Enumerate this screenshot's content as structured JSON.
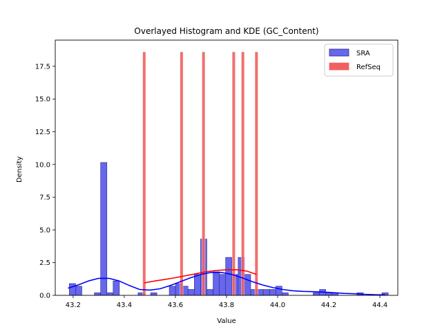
{
  "chart_data": {
    "type": "histogram",
    "title": "Overlayed Histogram and KDE (GC_Content)",
    "xlabel": "Value",
    "ylabel": "Density",
    "xlim": [
      43.13,
      44.47
    ],
    "ylim": [
      0,
      19.5
    ],
    "xticks": [
      43.2,
      43.4,
      43.6,
      43.8,
      44.0,
      44.2,
      44.4
    ],
    "xtick_labels": [
      "43.2",
      "43.4",
      "43.6",
      "43.8",
      "44.0",
      "44.2",
      "44.4"
    ],
    "yticks": [
      0,
      2.5,
      5,
      7.5,
      10,
      12.5,
      15,
      17.5
    ],
    "ytick_labels": [
      "0.0",
      "2.5",
      "5.0",
      "7.5",
      "10.0",
      "12.5",
      "15.0",
      "17.5"
    ],
    "grid": false,
    "legend_position": "top-right",
    "colors": {
      "sra_fill": "#6666ee",
      "sra_edge": "#2a2a7a",
      "sra_line": "#0000ff",
      "refseq_fill": "#f06060",
      "refseq_line": "#ff0000"
    },
    "series": [
      {
        "name": "SRA",
        "kind": "histogram",
        "bin_width": 0.0245,
        "bins": [
          {
            "x0": 43.185,
            "density": 0.9
          },
          {
            "x0": 43.2095,
            "density": 0.7
          },
          {
            "x0": 43.283,
            "density": 0.2
          },
          {
            "x0": 43.3075,
            "density": 10.15
          },
          {
            "x0": 43.332,
            "density": 0.2
          },
          {
            "x0": 43.3565,
            "density": 1.1
          },
          {
            "x0": 43.454,
            "density": 0.2
          },
          {
            "x0": 43.503,
            "density": 0.2
          },
          {
            "x0": 43.576,
            "density": 0.7
          },
          {
            "x0": 43.6005,
            "density": 0.9
          },
          {
            "x0": 43.625,
            "density": 0.7
          },
          {
            "x0": 43.6495,
            "density": 0.45
          },
          {
            "x0": 43.674,
            "density": 1.6
          },
          {
            "x0": 43.6985,
            "density": 4.3
          },
          {
            "x0": 43.723,
            "density": 0.45
          },
          {
            "x0": 43.7475,
            "density": 1.8
          },
          {
            "x0": 43.772,
            "density": 1.6
          },
          {
            "x0": 43.7965,
            "density": 2.9
          },
          {
            "x0": 43.821,
            "density": 1.6
          },
          {
            "x0": 43.8455,
            "density": 2.9
          },
          {
            "x0": 43.87,
            "density": 1.6
          },
          {
            "x0": 43.8945,
            "density": 0.45
          },
          {
            "x0": 43.919,
            "density": 0.45
          },
          {
            "x0": 43.9435,
            "density": 0.45
          },
          {
            "x0": 43.968,
            "density": 0.45
          },
          {
            "x0": 43.9925,
            "density": 0.7
          },
          {
            "x0": 44.017,
            "density": 0.2
          },
          {
            "x0": 44.139,
            "density": 0.2
          },
          {
            "x0": 44.1635,
            "density": 0.45
          },
          {
            "x0": 44.188,
            "density": 0.2
          },
          {
            "x0": 44.2125,
            "density": 0.2
          },
          {
            "x0": 44.3105,
            "density": 0.2
          },
          {
            "x0": 44.408,
            "density": 0.2
          }
        ],
        "kde": {
          "x": [
            43.18,
            43.22,
            43.26,
            43.3,
            43.34,
            43.38,
            43.42,
            43.46,
            43.5,
            43.54,
            43.58,
            43.62,
            43.66,
            43.7,
            43.74,
            43.78,
            43.82,
            43.86,
            43.9,
            43.94,
            43.98,
            44.02,
            44.06,
            44.1,
            44.14,
            44.18,
            44.22,
            44.26,
            44.3,
            44.34,
            44.38,
            44.42
          ],
          "y": [
            0.55,
            0.8,
            1.1,
            1.3,
            1.3,
            1.1,
            0.75,
            0.45,
            0.4,
            0.5,
            0.75,
            1.05,
            1.35,
            1.6,
            1.75,
            1.75,
            1.6,
            1.35,
            1.05,
            0.8,
            0.6,
            0.45,
            0.35,
            0.3,
            0.28,
            0.25,
            0.2,
            0.15,
            0.12,
            0.08,
            0.05,
            0.04
          ]
        }
      },
      {
        "name": "RefSeq",
        "kind": "histogram",
        "bin_width": 0.012,
        "bins": [
          {
            "x0": 43.472,
            "density": 18.6
          },
          {
            "x0": 43.618,
            "density": 18.6
          },
          {
            "x0": 43.704,
            "density": 18.6
          },
          {
            "x0": 43.822,
            "density": 18.6
          },
          {
            "x0": 43.858,
            "density": 18.6
          },
          {
            "x0": 43.911,
            "density": 18.6
          }
        ],
        "kde": {
          "x": [
            43.478,
            43.52,
            43.56,
            43.6,
            43.64,
            43.68,
            43.72,
            43.76,
            43.8,
            43.84,
            43.88,
            43.917
          ],
          "y": [
            0.95,
            1.1,
            1.22,
            1.35,
            1.5,
            1.65,
            1.8,
            1.9,
            1.95,
            1.95,
            1.85,
            1.6
          ]
        }
      }
    ]
  }
}
